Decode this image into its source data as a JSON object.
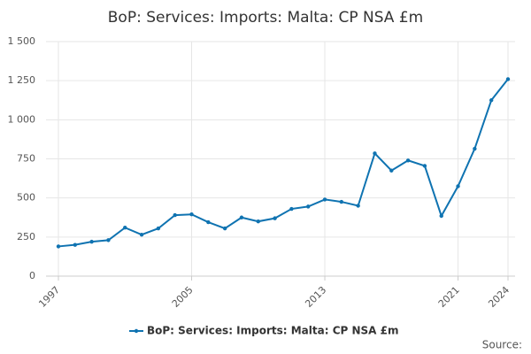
{
  "chart_data": {
    "type": "line",
    "title": "BoP: Services: Imports: Malta: CP NSA £m",
    "x": [
      1997,
      1998,
      1999,
      2000,
      2001,
      2002,
      2003,
      2004,
      2005,
      2006,
      2007,
      2008,
      2009,
      2010,
      2011,
      2012,
      2013,
      2014,
      2015,
      2016,
      2017,
      2018,
      2019,
      2020,
      2021,
      2022,
      2023,
      2024
    ],
    "series": [
      {
        "name": "BoP: Services: Imports: Malta: CP NSA £m",
        "color": "#0f73b1",
        "values": [
          190,
          200,
          220,
          230,
          310,
          265,
          305,
          390,
          395,
          345,
          305,
          375,
          350,
          370,
          430,
          445,
          490,
          475,
          450,
          785,
          675,
          740,
          705,
          385,
          575,
          815,
          1125,
          1260
        ]
      }
    ],
    "xlim": [
      1997,
      2024
    ],
    "xticks": [
      1997,
      2005,
      2013,
      2021,
      2024
    ],
    "ylim": [
      0,
      1500
    ],
    "yticks": [
      0,
      250,
      500,
      750,
      {
        "value": 1000,
        "label": "1 000"
      },
      {
        "value": 1250,
        "label": "1 250"
      },
      {
        "value": 1500,
        "label": "1 500"
      }
    ],
    "grid": true,
    "legend": "bottom",
    "source": "Source:"
  }
}
